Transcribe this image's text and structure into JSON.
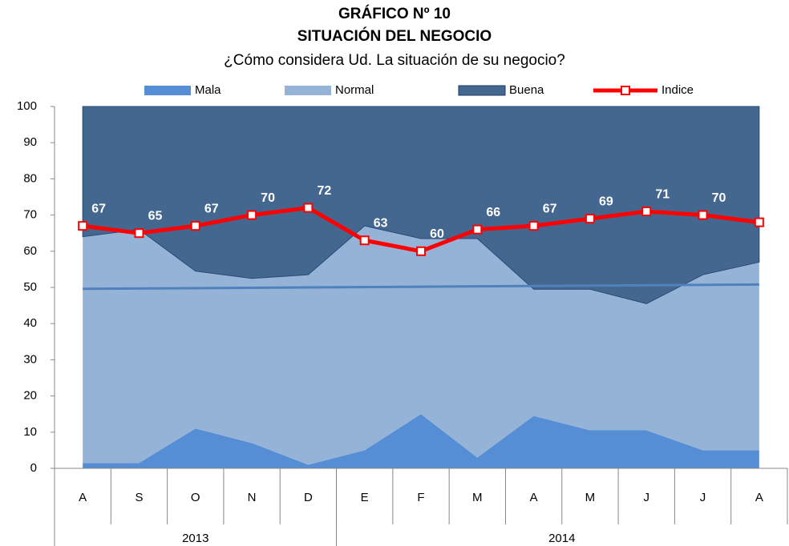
{
  "chart_data": {
    "type": "stacked-area-line",
    "title": "GRÁFICO Nº 10",
    "subtitle": "SITUACIÓN DEL NEGOCIO",
    "question": "¿Cómo considera Ud. La situación de su negocio?",
    "categories": [
      "A",
      "S",
      "O",
      "N",
      "D",
      "E",
      "F",
      "M",
      "A",
      "M",
      "J",
      "J",
      "A"
    ],
    "groups": [
      {
        "label": "2013",
        "span": 5
      },
      {
        "label": "2014",
        "span": 8
      }
    ],
    "series": [
      {
        "name": "Mala",
        "color": "#558ed5",
        "values": [
          1.5,
          1.5,
          11,
          7,
          1,
          5,
          15,
          3,
          14.5,
          10.5,
          10.5,
          5,
          5
        ]
      },
      {
        "name": "Normal",
        "color": "#95b3d7",
        "values": [
          62.5,
          64.5,
          43.5,
          45.5,
          52.5,
          62,
          48.5,
          60.5,
          35,
          39,
          35,
          48.5,
          52
        ]
      },
      {
        "name": "Buena",
        "color": "#44678f",
        "values": [
          36,
          34,
          45.5,
          47.5,
          46.5,
          33,
          36.5,
          36.5,
          50.5,
          50.5,
          54.5,
          46.5,
          43
        ]
      },
      {
        "name": "Indice",
        "color": "#ff0000",
        "type": "line",
        "values": [
          67,
          65,
          67,
          70,
          72,
          63,
          60,
          66,
          67,
          69,
          71,
          70,
          68
        ]
      }
    ],
    "trendline": {
      "color": "#4f81bd",
      "values": [
        49.6,
        50.8
      ]
    },
    "ylim": [
      0,
      100
    ],
    "yticks": [
      0,
      10,
      20,
      30,
      40,
      50,
      60,
      70,
      80,
      90,
      100
    ],
    "grid": false
  }
}
